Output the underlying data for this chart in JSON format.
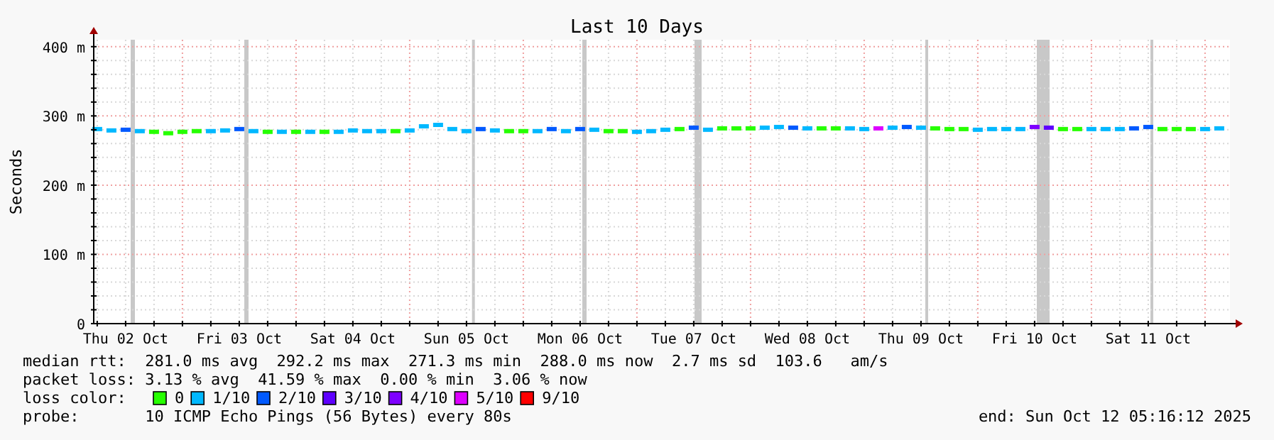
{
  "chart_data": {
    "type": "scatter",
    "title": "Last 10 Days",
    "ylabel": "Seconds",
    "legend_title": "loss color:",
    "legend": "bottom",
    "marker": "square",
    "grid": true,
    "xlim": [
      "2025-10-02T05:16",
      "2025-10-12T05:16"
    ],
    "xticks": [
      {
        "value": "2025-10-02T06:00",
        "label": null
      },
      {
        "value": "2025-10-02T12:00",
        "label": "Thu 02 Oct"
      },
      {
        "value": "2025-10-02T18:00",
        "label": null
      },
      {
        "value": "2025-10-03T00:00",
        "label": null
      },
      {
        "value": "2025-10-03T06:00",
        "label": null
      },
      {
        "value": "2025-10-03T12:00",
        "label": "Fri 03 Oct"
      },
      {
        "value": "2025-10-03T18:00",
        "label": null
      },
      {
        "value": "2025-10-04T00:00",
        "label": null
      },
      {
        "value": "2025-10-04T06:00",
        "label": null
      },
      {
        "value": "2025-10-04T12:00",
        "label": "Sat 04 Oct"
      },
      {
        "value": "2025-10-04T18:00",
        "label": null
      },
      {
        "value": "2025-10-05T00:00",
        "label": null
      },
      {
        "value": "2025-10-05T06:00",
        "label": null
      },
      {
        "value": "2025-10-05T12:00",
        "label": "Sun 05 Oct"
      },
      {
        "value": "2025-10-05T18:00",
        "label": null
      },
      {
        "value": "2025-10-06T00:00",
        "label": null
      },
      {
        "value": "2025-10-06T06:00",
        "label": null
      },
      {
        "value": "2025-10-06T12:00",
        "label": "Mon 06 Oct"
      },
      {
        "value": "2025-10-06T18:00",
        "label": null
      },
      {
        "value": "2025-10-07T00:00",
        "label": null
      },
      {
        "value": "2025-10-07T06:00",
        "label": null
      },
      {
        "value": "2025-10-07T12:00",
        "label": "Tue 07 Oct"
      },
      {
        "value": "2025-10-07T18:00",
        "label": null
      },
      {
        "value": "2025-10-08T00:00",
        "label": null
      },
      {
        "value": "2025-10-08T06:00",
        "label": null
      },
      {
        "value": "2025-10-08T12:00",
        "label": "Wed 08 Oct"
      },
      {
        "value": "2025-10-08T18:00",
        "label": null
      },
      {
        "value": "2025-10-09T00:00",
        "label": null
      },
      {
        "value": "2025-10-09T06:00",
        "label": null
      },
      {
        "value": "2025-10-09T12:00",
        "label": "Thu 09 Oct"
      },
      {
        "value": "2025-10-09T18:00",
        "label": null
      },
      {
        "value": "2025-10-10T00:00",
        "label": null
      },
      {
        "value": "2025-10-10T06:00",
        "label": null
      },
      {
        "value": "2025-10-10T12:00",
        "label": "Fri 10 Oct"
      },
      {
        "value": "2025-10-10T18:00",
        "label": null
      },
      {
        "value": "2025-10-11T00:00",
        "label": null
      },
      {
        "value": "2025-10-11T06:00",
        "label": null
      },
      {
        "value": "2025-10-11T12:00",
        "label": "Sat 11 Oct"
      },
      {
        "value": "2025-10-11T18:00",
        "label": null
      },
      {
        "value": "2025-10-12T00:00",
        "label": null
      }
    ],
    "ylim": [
      0,
      410
    ],
    "yticks": [
      0,
      {
        "value": 20,
        "label": null
      },
      {
        "value": 40,
        "label": null
      },
      {
        "value": 60,
        "label": null
      },
      {
        "value": 80,
        "label": null
      },
      {
        "value": 100,
        "label": "100 m"
      },
      {
        "value": 120,
        "label": null
      },
      {
        "value": 140,
        "label": null
      },
      {
        "value": 160,
        "label": null
      },
      {
        "value": 180,
        "label": null
      },
      {
        "value": 200,
        "label": "200 m"
      },
      {
        "value": 220,
        "label": null
      },
      {
        "value": 240,
        "label": null
      },
      {
        "value": 260,
        "label": null
      },
      {
        "value": 280,
        "label": null
      },
      {
        "value": 300,
        "label": "300 m"
      },
      {
        "value": 320,
        "label": null
      },
      {
        "value": 340,
        "label": null
      },
      {
        "value": 360,
        "label": null
      },
      {
        "value": 380,
        "label": null
      },
      {
        "value": 400,
        "label": "400 m"
      }
    ],
    "bands": [
      {
        "axis": "x",
        "from": "2025-10-02T13:04",
        "to": "2025-10-02T13:58",
        "color": "#c8c8c8"
      },
      {
        "axis": "x",
        "from": "2025-10-03T13:04",
        "to": "2025-10-03T13:58",
        "color": "#c8c8c8"
      },
      {
        "axis": "x",
        "from": "2025-10-05T13:10",
        "to": "2025-10-05T13:40",
        "color": "#c8c8c8"
      },
      {
        "axis": "x",
        "from": "2025-10-06T12:28",
        "to": "2025-10-06T13:22",
        "color": "#c8c8c8"
      },
      {
        "axis": "x",
        "from": "2025-10-07T12:10",
        "to": "2025-10-07T13:40",
        "color": "#c8c8c8"
      },
      {
        "axis": "x",
        "from": "2025-10-09T12:55",
        "to": "2025-10-09T13:15",
        "color": "#c8c8c8"
      },
      {
        "axis": "x",
        "from": "2025-10-10T12:28",
        "to": "2025-10-10T15:10",
        "color": "#c8c8c8"
      },
      {
        "axis": "x",
        "from": "2025-10-11T12:28",
        "to": "2025-10-11T13:04",
        "color": "#c8c8c8"
      }
    ],
    "series": [
      {
        "name": "0",
        "color": "#26ff00",
        "x": [
          "2025-10-02T18:00",
          "2025-10-02T21:00",
          "2025-10-03T00:00",
          "2025-10-03T03:00",
          "2025-10-03T18:00",
          "2025-10-04T00:00",
          "2025-10-04T06:00",
          "2025-10-04T21:00",
          "2025-10-05T21:00",
          "2025-10-06T00:00",
          "2025-10-06T18:00",
          "2025-10-06T21:00",
          "2025-10-07T09:00",
          "2025-10-07T18:00",
          "2025-10-07T21:00",
          "2025-10-08T00:00",
          "2025-10-08T15:00",
          "2025-10-08T18:00",
          "2025-10-09T15:00",
          "2025-10-09T18:00",
          "2025-10-09T21:00",
          "2025-10-10T18:00",
          "2025-10-10T21:00",
          "2025-10-11T15:00",
          "2025-10-11T18:00",
          "2025-10-11T21:00"
        ],
        "values": [
          277,
          275,
          277,
          278,
          277,
          277,
          277,
          278,
          278,
          278,
          278,
          278,
          281,
          282,
          282,
          282,
          282,
          282,
          282,
          281,
          281,
          281,
          281,
          281,
          281,
          281
        ]
      },
      {
        "name": "1/10",
        "color": "#00b8ff",
        "x": [
          "2025-10-02T06:00",
          "2025-10-02T09:00",
          "2025-10-02T15:00",
          "2025-10-03T06:00",
          "2025-10-03T09:00",
          "2025-10-03T15:00",
          "2025-10-03T21:00",
          "2025-10-04T03:00",
          "2025-10-04T09:00",
          "2025-10-04T12:00",
          "2025-10-04T15:00",
          "2025-10-04T18:00",
          "2025-10-05T00:00",
          "2025-10-05T03:00",
          "2025-10-05T06:00",
          "2025-10-05T09:00",
          "2025-10-05T12:00",
          "2025-10-05T18:00",
          "2025-10-06T03:00",
          "2025-10-06T09:00",
          "2025-10-06T15:00",
          "2025-10-07T00:00",
          "2025-10-07T03:00",
          "2025-10-07T06:00",
          "2025-10-07T15:00",
          "2025-10-08T03:00",
          "2025-10-08T06:00",
          "2025-10-08T12:00",
          "2025-10-08T21:00",
          "2025-10-09T00:00",
          "2025-10-09T06:00",
          "2025-10-09T12:00",
          "2025-10-10T00:00",
          "2025-10-10T03:00",
          "2025-10-10T06:00",
          "2025-10-10T09:00",
          "2025-10-11T00:00",
          "2025-10-11T03:00",
          "2025-10-11T06:00",
          "2025-10-12T00:00",
          "2025-10-12T03:00"
        ],
        "values": [
          281,
          279,
          278,
          278,
          279,
          278,
          277,
          277,
          277,
          279,
          278,
          278,
          279,
          285,
          287,
          281,
          278,
          279,
          278,
          278,
          280,
          277,
          278,
          280,
          280,
          283,
          284,
          282,
          282,
          281,
          283,
          283,
          280,
          281,
          281,
          281,
          281,
          281,
          281,
          281,
          282
        ]
      },
      {
        "name": "2/10",
        "color": "#0059ff",
        "x": [
          "2025-10-02T12:00",
          "2025-10-03T12:00",
          "2025-10-05T15:00",
          "2025-10-06T06:00",
          "2025-10-06T12:00",
          "2025-10-07T12:00",
          "2025-10-08T09:00",
          "2025-10-09T09:00",
          "2025-10-11T09:00",
          "2025-10-11T12:00"
        ],
        "values": [
          280,
          281,
          281,
          281,
          281,
          283,
          283,
          284,
          282,
          284
        ]
      },
      {
        "name": "3/10",
        "color": "#5e00ff",
        "x": [
          "2025-10-10T15:00"
        ],
        "values": [
          283
        ]
      },
      {
        "name": "4/10",
        "color": "#7e00ff",
        "x": [
          "2025-10-10T12:00"
        ],
        "values": [
          284
        ]
      },
      {
        "name": "5/10",
        "color": "#dd00ff",
        "x": [
          "2025-10-09T03:00"
        ],
        "values": [
          282
        ]
      },
      {
        "name": "9/10",
        "color": "#ff0000"
      }
    ],
    "annotations": [
      "median rtt:  281.0 ms avg  292.2 ms max  271.3 ms min  288.0 ms now  2.7 ms sd  103.6   am/s",
      "packet loss: 3.13 % avg  41.59 % max  0.00 % min  3.06 % now",
      "probe:       10 ICMP Echo Pings (56 Bytes) every 80s",
      "end: Sun Oct 12 05:16:12 2025"
    ]
  }
}
